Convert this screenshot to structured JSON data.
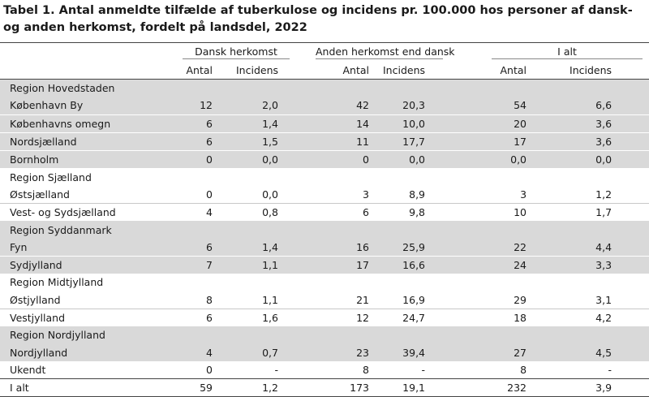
{
  "title": "Tabel 1. Antal anmeldte tilfælde af tuberkulose og incidens pr. 100.000 hos personer af dansk- og anden herkomst, fordelt på landsdel, 2022",
  "groups": [
    "Dansk herkomst",
    "Anden herkomst end dansk",
    "I alt"
  ],
  "subheaders": [
    "Antal",
    "Incidens",
    "Antal",
    "Incidens",
    "Antal",
    "Incidens"
  ],
  "regions": [
    {
      "name": "Region Hovedstaden",
      "rows": [
        [
          "København By",
          "12",
          "2,0",
          "42",
          "20,3",
          "54",
          "6,6"
        ],
        [
          "Københavns omegn",
          "6",
          "1,4",
          "14",
          "10,0",
          "20",
          "3,6"
        ],
        [
          "Nordsjælland",
          "6",
          "1,5",
          "11",
          "17,7",
          "17",
          "3,6"
        ],
        [
          "Bornholm",
          "0",
          "0,0",
          "0",
          "0,0",
          "0,0",
          "0,0"
        ]
      ]
    },
    {
      "name": "Region Sjælland",
      "rows": [
        [
          "Østsjælland",
          "0",
          "0,0",
          "3",
          "8,9",
          "3",
          "1,2"
        ],
        [
          "Vest- og Sydsjælland",
          "4",
          "0,8",
          "6",
          "9,8",
          "10",
          "1,7"
        ]
      ]
    },
    {
      "name": "Region Syddanmark",
      "rows": [
        [
          "Fyn",
          "6",
          "1,4",
          "16",
          "25,9",
          "22",
          "4,4"
        ],
        [
          "Sydjylland",
          "7",
          "1,1",
          "17",
          "16,6",
          "24",
          "3,3"
        ]
      ]
    },
    {
      "name": "Region Midtjylland",
      "rows": [
        [
          "Østjylland",
          "8",
          "1,1",
          "21",
          "16,9",
          "29",
          "3,1"
        ],
        [
          "Vestjylland",
          "6",
          "1,6",
          "12",
          "24,7",
          "18",
          "4,2"
        ]
      ]
    },
    {
      "name": "Region Nordjylland",
      "rows": [
        [
          "Nordjylland",
          "4",
          "0,7",
          "23",
          "39,4",
          "27",
          "4,5"
        ]
      ]
    }
  ],
  "ukendt": [
    "Ukendt",
    "0",
    "-",
    "8",
    "-",
    "8",
    "-"
  ],
  "total": [
    "I alt",
    "59",
    "1,2",
    "173",
    "19,1",
    "232",
    "3,9"
  ]
}
